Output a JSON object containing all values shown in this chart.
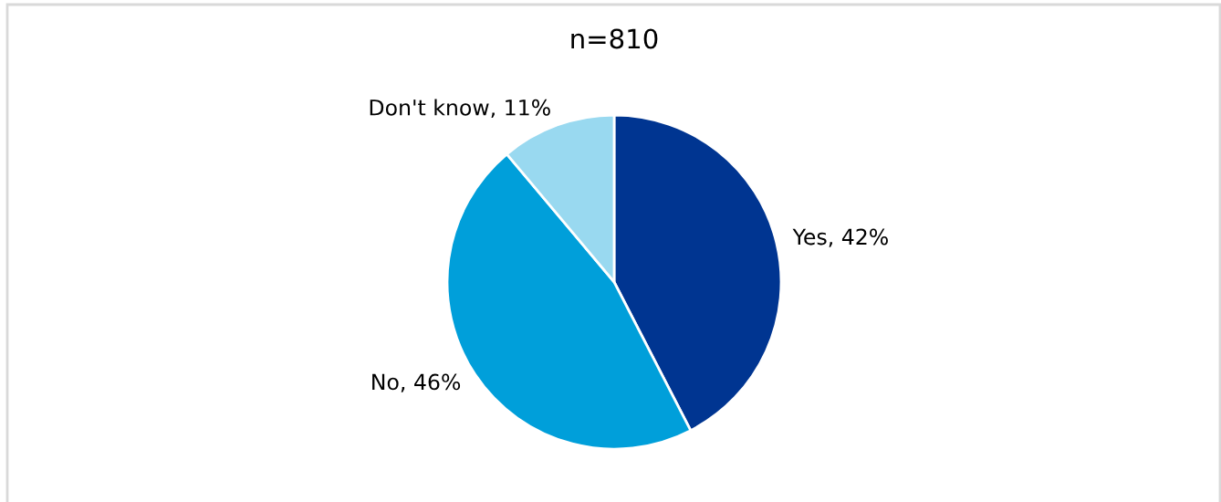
{
  "chart_data": {
    "type": "pie",
    "title": "n=810",
    "categories": [
      "Yes",
      "No",
      "Don't know"
    ],
    "values": [
      42,
      46,
      11
    ],
    "value_labels": [
      "42%",
      "46%",
      "11%"
    ],
    "colors": [
      "#003591",
      "#009fda",
      "#99d9f0"
    ],
    "legend": false
  }
}
